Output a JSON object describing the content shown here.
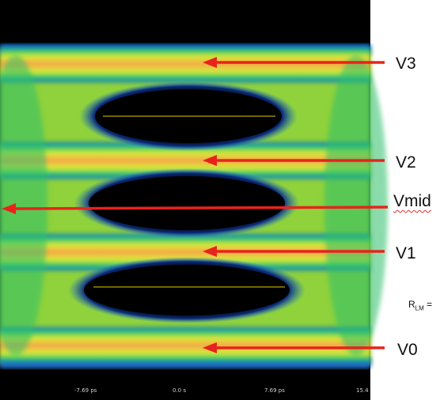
{
  "levels": [
    {
      "name": "V3"
    },
    {
      "name": "V2"
    },
    {
      "name": "Vmid"
    },
    {
      "name": "V1"
    },
    {
      "name": "V0"
    }
  ],
  "side_label": {
    "main": "R",
    "sub": "LM",
    "suffix": " ="
  },
  "time_axis": {
    "ticks": [
      "-7.69 ps",
      "0.0 s",
      "7.69 ps",
      "15.4"
    ]
  },
  "colors": {
    "arrow": "#e8231c",
    "background": "#000000",
    "edge_blue": "#1a6fe0",
    "edge_green": "#19c26a",
    "mid_yellow": "#f2ee2a",
    "core_orange": "#f59a45",
    "reference_line": "#b8a400"
  }
}
